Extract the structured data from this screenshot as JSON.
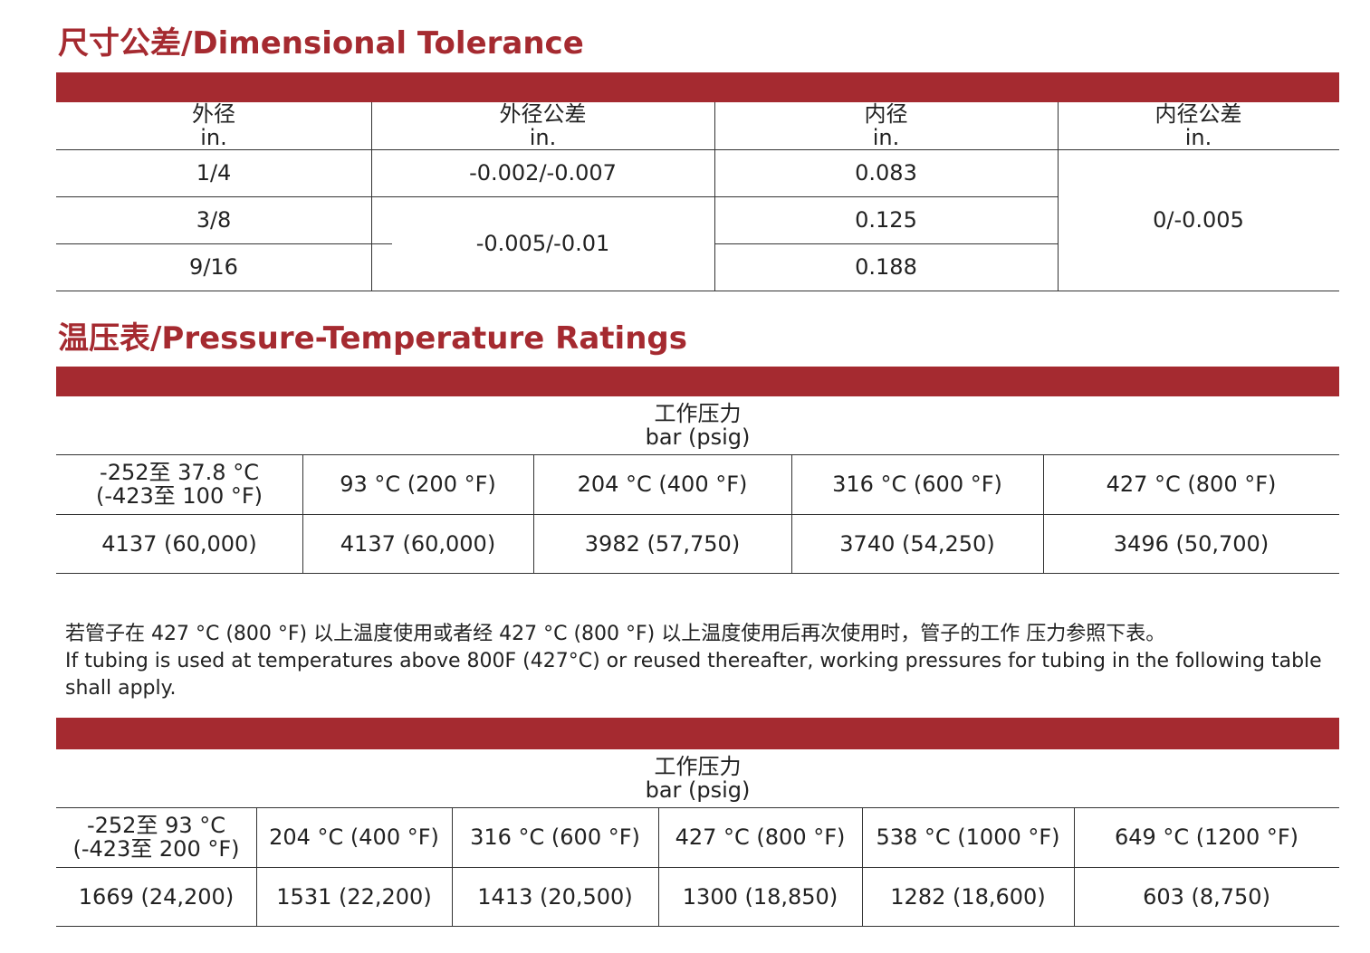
{
  "tolerance": {
    "title": "尺寸公差/Dimensional Tolerance",
    "headers": [
      [
        "外径",
        "in."
      ],
      [
        "外径公差",
        "in."
      ],
      [
        "内径",
        "in."
      ],
      [
        "内径公差",
        "in."
      ]
    ],
    "od": [
      "1/4",
      "3/8",
      "9/16"
    ],
    "od_tol": [
      "-0.002/-0.007",
      "-0.005/-0.01"
    ],
    "id": [
      "0.083",
      "0.125",
      "0.188"
    ],
    "id_tol": "0/-0.005"
  },
  "ratings": {
    "title": "温压表/Pressure-Temperature Ratings",
    "table1": {
      "header": [
        "工作压力",
        "bar (psig)"
      ],
      "temps": [
        [
          "-252至 37.8 °C",
          "(-423至 100 °F)"
        ],
        [
          "93 °C (200 °F)"
        ],
        [
          "204 °C (400 °F)"
        ],
        [
          "316 °C (600 °F)"
        ],
        [
          "427 °C (800 °F)"
        ]
      ],
      "values": [
        "4137 (60,000)",
        "4137 (60,000)",
        "3982 (57,750)",
        "3740 (54,250)",
        "3496 (50,700)"
      ]
    },
    "note_cn": "若管子在  427 °C (800 °F) 以上温度使用或者经   427 °C (800 °F) 以上温度使用后再次使用时，管子的工作   压力参照下表。",
    "note_en": [
      "If tubing is used at temperatures above 800F (427°C) or reused thereafter, working pressures for tubing in the following table",
      "shall apply."
    ],
    "table2": {
      "header": [
        "工作压力",
        "bar (psig)"
      ],
      "temps": [
        [
          "-252至 93 °C",
          "(-423至 200 °F)"
        ],
        [
          "204 °C (400 °F)"
        ],
        [
          "316 °C (600 °F)"
        ],
        [
          "427 °C (800 °F)"
        ],
        [
          "538 °C (1000 °F)"
        ],
        [
          "649 °C (1200 °F)"
        ]
      ],
      "values": [
        "1669 (24,200)",
        "1531 (22,200)",
        "1413 (20,500)",
        "1300 (18,850)",
        "1282 (18,600)",
        "603 (8,750)"
      ]
    }
  },
  "colors": {
    "accent": "#a52a30"
  }
}
